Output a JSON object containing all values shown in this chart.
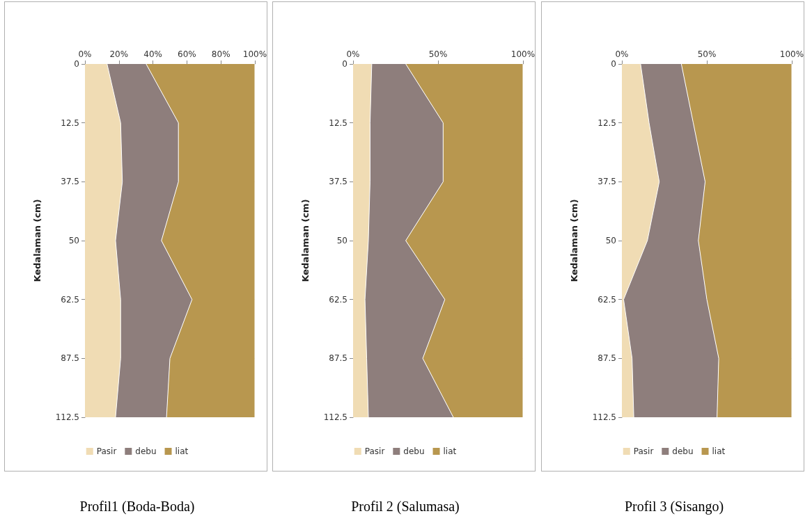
{
  "chart_data": [
    {
      "type": "area",
      "title": "Profil1 (Boda-Boda)",
      "ylabel": "Kedalaman (cm)",
      "stacked": true,
      "orientation": "horizontal",
      "categories": [
        "0",
        "12.5",
        "37.5",
        "50",
        "62.5",
        "87.5",
        "112.5"
      ],
      "xlim": [
        0,
        100
      ],
      "xticks": [
        {
          "value": 0,
          "label": "0%"
        },
        {
          "value": 20,
          "label": "20%"
        },
        {
          "value": 40,
          "label": "40%"
        },
        {
          "value": 60,
          "label": "60%"
        },
        {
          "value": 80,
          "label": "80%"
        },
        {
          "value": 100,
          "label": "100%"
        }
      ],
      "legend": "bottom",
      "grid": false,
      "marker": "none",
      "series": [
        {
          "name": "Pasir",
          "color": "#f0dcb4",
          "values": [
            13,
            21,
            22,
            18,
            21,
            21,
            18
          ]
        },
        {
          "name": "debu",
          "color": "#8e7e7c",
          "values": [
            23,
            34,
            33,
            27,
            42,
            29,
            30
          ]
        },
        {
          "name": "liat",
          "color": "#b8974f",
          "values": [
            64,
            45,
            45,
            55,
            37,
            50,
            52
          ]
        }
      ]
    },
    {
      "type": "area",
      "title": "Profil 2 (Salumasa)",
      "ylabel": "Kedalaman (cm)",
      "stacked": true,
      "orientation": "horizontal",
      "categories": [
        "0",
        "12.5",
        "37.5",
        "50",
        "62.5",
        "87.5",
        "112.5"
      ],
      "xlim": [
        0,
        100
      ],
      "xticks": [
        {
          "value": 0,
          "label": "0%"
        },
        {
          "value": 50,
          "label": "50%"
        },
        {
          "value": 100,
          "label": "100%"
        }
      ],
      "legend": "bottom",
      "grid": false,
      "marker": "none",
      "series": [
        {
          "name": "Pasir",
          "color": "#f0dcb4",
          "values": [
            11,
            10,
            10,
            9,
            7,
            8,
            9
          ]
        },
        {
          "name": "debu",
          "color": "#8e7e7c",
          "values": [
            20,
            43,
            43,
            22,
            47,
            33,
            50
          ]
        },
        {
          "name": "liat",
          "color": "#b8974f",
          "values": [
            69,
            47,
            47,
            69,
            46,
            59,
            41
          ]
        }
      ]
    },
    {
      "type": "area",
      "title": "Profil 3 (Sisango)",
      "ylabel": "Kedalaman (cm)",
      "stacked": true,
      "orientation": "horizontal",
      "categories": [
        "0",
        "12.5",
        "37.5",
        "50",
        "62.5",
        "87.5",
        "112.5"
      ],
      "xlim": [
        0,
        100
      ],
      "xticks": [
        {
          "value": 0,
          "label": "0%"
        },
        {
          "value": 50,
          "label": "50%"
        },
        {
          "value": 100,
          "label": "100%"
        }
      ],
      "legend": "bottom",
      "grid": false,
      "marker": "none",
      "series": [
        {
          "name": "Pasir",
          "color": "#f0dcb4",
          "values": [
            11,
            16,
            22,
            15,
            1,
            6,
            7
          ]
        },
        {
          "name": "debu",
          "color": "#8e7e7c",
          "values": [
            24,
            26,
            27,
            30,
            49,
            51,
            49
          ]
        },
        {
          "name": "liat",
          "color": "#b8974f",
          "values": [
            65,
            58,
            51,
            55,
            50,
            43,
            44
          ]
        }
      ]
    }
  ]
}
